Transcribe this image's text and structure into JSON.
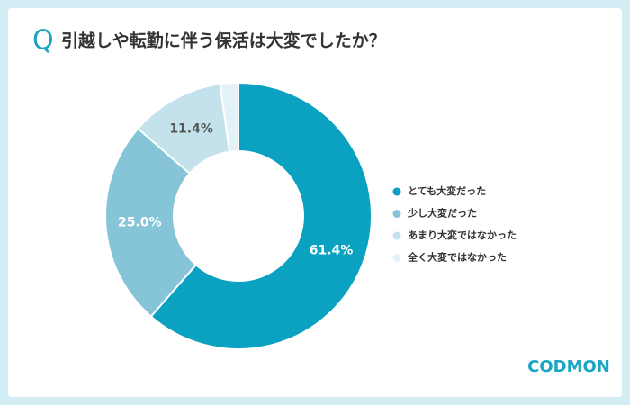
{
  "chart_data": {
    "type": "donut",
    "title_marker": "Q",
    "title": "引越しや転勤に伴う保活は大変でしたか？",
    "categories": [
      "とても大変だった",
      "少し大変だった",
      "あまり大変ではなかった",
      "全く大変ではなかった"
    ],
    "values": [
      61.4,
      25.0,
      11.4,
      2.2
    ],
    "value_labels": [
      "61.4%",
      "25.0%",
      "11.4%",
      null
    ],
    "colors": [
      "#0aa2c0",
      "#86c4d7",
      "#c4e2eb",
      "#e2f2f7"
    ],
    "label_colors": [
      "#ffffff",
      "#ffffff",
      "#555555",
      null
    ],
    "legend": "right",
    "logo": "CODMON"
  }
}
